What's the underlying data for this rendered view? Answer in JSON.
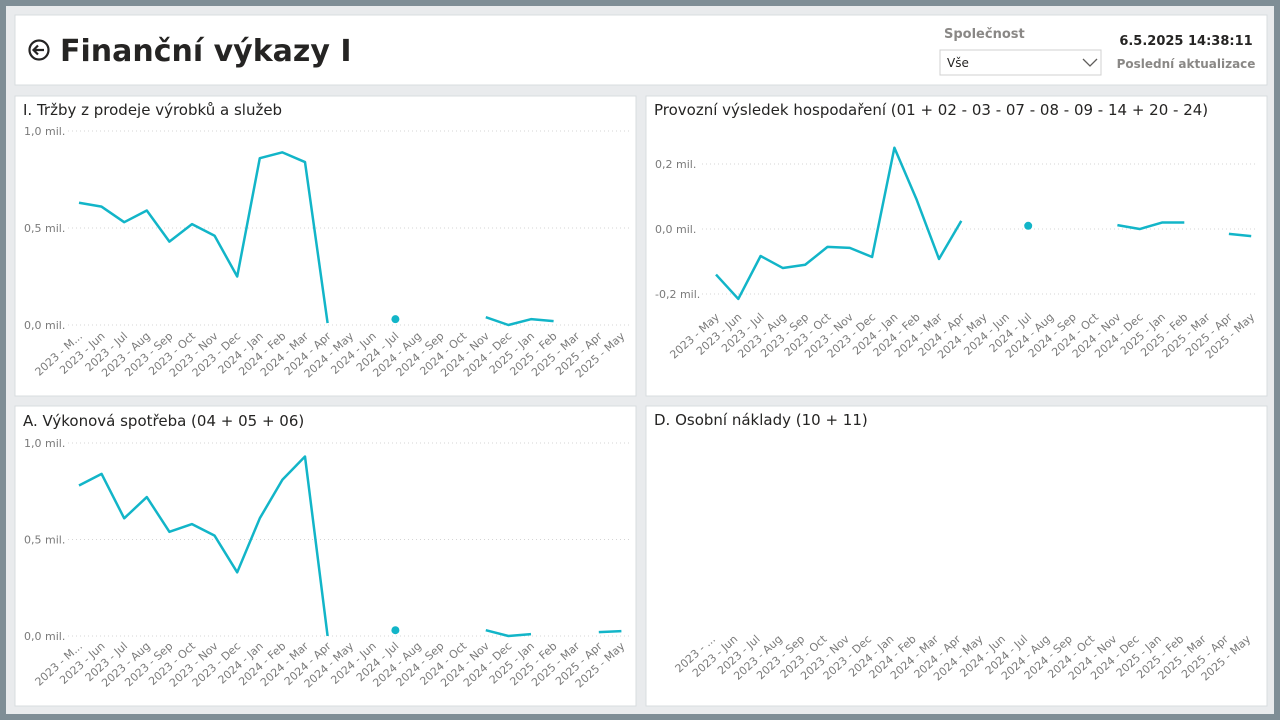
{
  "header": {
    "title": "Finanční výkazy I",
    "filter_label": "Společnost",
    "filter_value": "Vše",
    "timestamp": "6.5.2025 14:38:11",
    "timestamp_label": "Poslední aktualizace"
  },
  "chart_data": [
    {
      "type": "line",
      "title": "I. Tržby z prodeje výrobků a služeb",
      "categories": [
        "2023 - M...",
        "2023 - Jun",
        "2023 - Jul",
        "2023 - Aug",
        "2023 - Sep",
        "2023 - Oct",
        "2023 - Nov",
        "2023 - Dec",
        "2024 - Jan",
        "2024 - Feb",
        "2024 - Mar",
        "2024 - Apr",
        "2024 - May",
        "2024 - Jun",
        "2024 - Jul",
        "2024 - Aug",
        "2024 - Sep",
        "2024 - Oct",
        "2024 - Nov",
        "2024 - Dec",
        "2025 - Jan",
        "2025 - Feb",
        "2025 - Mar",
        "2025 - Apr",
        "2025 - May"
      ],
      "series": [
        {
          "color": "#12b5c8",
          "values": [
            0.63,
            0.61,
            0.53,
            0.59,
            0.43,
            0.52,
            0.46,
            0.25,
            0.86,
            0.89,
            0.84,
            0.01,
            null,
            null,
            0.03,
            null,
            null,
            null,
            0.04,
            0.0,
            0.03,
            0.02,
            null,
            null,
            null
          ]
        }
      ],
      "ylim": [
        0,
        1.05
      ],
      "yticks": [
        {
          "value": 0,
          "label": "0,0 mil."
        },
        {
          "value": 0.5,
          "label": "0,5 mil."
        },
        {
          "value": 1,
          "label": "1,0 mil."
        }
      ],
      "grid": true
    },
    {
      "type": "line",
      "title": "Provozní výsledek hospodaření (01 + 02 - 03 - 07 - 08 - 09 - 14 + 20 - 24)",
      "categories": [
        "2023 - May",
        "2023 - Jun",
        "2023 - Jul",
        "2023 - Aug",
        "2023 - Sep",
        "2023 - Oct",
        "2023 - Nov",
        "2023 - Dec",
        "2024 - Jan",
        "2024 - Feb",
        "2024 - Mar",
        "2024 - Apr",
        "2024 - May",
        "2024 - Jun",
        "2024 - Jul",
        "2024 - Aug",
        "2024 - Sep",
        "2024 - Oct",
        "2024 - Nov",
        "2024 - Dec",
        "2025 - Jan",
        "2025 - Feb",
        "2025 - Mar",
        "2025 - Apr",
        "2025 - May"
      ],
      "series": [
        {
          "color": "#12b5c8",
          "values": [
            -0.14,
            -0.215,
            -0.083,
            -0.12,
            -0.11,
            -0.055,
            -0.058,
            -0.086,
            0.25,
            0.09,
            -0.092,
            0.025,
            null,
            null,
            0.01,
            null,
            null,
            null,
            0.012,
            0.0,
            0.02,
            0.02,
            null,
            -0.015,
            -0.022
          ]
        }
      ],
      "ylim": [
        -0.25,
        0.3
      ],
      "yticks": [
        {
          "value": -0.2,
          "label": "-0,2 mil."
        },
        {
          "value": 0,
          "label": "0,0 mil."
        },
        {
          "value": 0.2,
          "label": "0,2 mil."
        }
      ],
      "grid": true
    },
    {
      "type": "line",
      "title": "A. Výkonová spotřeba (04 + 05 + 06)",
      "categories": [
        "2023 - M...",
        "2023 - Jun",
        "2023 - Jul",
        "2023 - Aug",
        "2023 - Sep",
        "2023 - Oct",
        "2023 - Nov",
        "2023 - Dec",
        "2024 - Jan",
        "2024 - Feb",
        "2024 - Mar",
        "2024 - Apr",
        "2024 - May",
        "2024 - Jun",
        "2024 - Jul",
        "2024 - Aug",
        "2024 - Sep",
        "2024 - Oct",
        "2024 - Nov",
        "2024 - Dec",
        "2025 - Jan",
        "2025 - Feb",
        "2025 - Mar",
        "2025 - Apr",
        "2025 - May"
      ],
      "series": [
        {
          "color": "#12b5c8",
          "values": [
            0.78,
            0.84,
            0.61,
            0.72,
            0.54,
            0.58,
            0.52,
            0.33,
            0.61,
            0.81,
            0.93,
            0.0,
            null,
            null,
            0.03,
            null,
            null,
            null,
            0.03,
            0.0,
            0.01,
            null,
            null,
            0.02,
            0.025
          ]
        }
      ],
      "ylim": [
        0,
        1.05
      ],
      "yticks": [
        {
          "value": 0,
          "label": "0,0 mil."
        },
        {
          "value": 0.5,
          "label": "0,5 mil."
        },
        {
          "value": 1,
          "label": "1,0 mil."
        }
      ],
      "grid": true
    },
    {
      "type": "line",
      "title": "D. Osobní náklady (10 + 11)",
      "categories": [
        "2023 - ...",
        "2023 - Jun",
        "2023 - Jul",
        "2023 - Aug",
        "2023 - Sep",
        "2023 - Oct",
        "2023 - Nov",
        "2023 - Dec",
        "2024 - Jan",
        "2024 - Feb",
        "2024 - Mar",
        "2024 - Apr",
        "2024 - May",
        "2024 - Jun",
        "2024 - Jul",
        "2024 - Aug",
        "2024 - Sep",
        "2024 - Oct",
        "2024 - Nov",
        "2024 - Dec",
        "2025 - Jan",
        "2025 - Feb",
        "2025 - Mar",
        "2025 - Apr",
        "2025 - May"
      ]
    }
  ]
}
